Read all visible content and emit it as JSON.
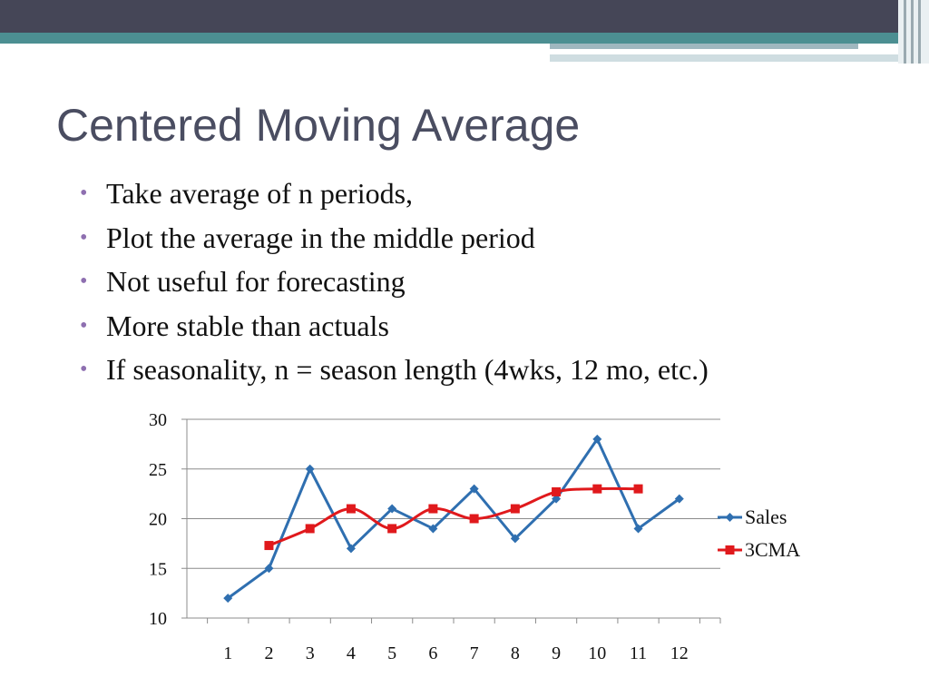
{
  "theme": {
    "band_dark": "#454657",
    "band_teal": "#4c8f92",
    "title_color": "#4a4d61",
    "bullet_color": "#8e6fb0",
    "sales_color": "#2f6fb0",
    "cma_color": "#e0191c"
  },
  "slide": {
    "title": "Centered Moving Average",
    "bullets": [
      "Take average of n periods,",
      "Plot the average in the middle period",
      "Not useful for forecasting",
      "More stable than actuals",
      "If seasonality, n = season length (4wks, 12 mo, etc.)"
    ]
  },
  "chart_data": {
    "type": "line",
    "x": [
      1,
      2,
      3,
      4,
      5,
      6,
      7,
      8,
      9,
      10,
      11,
      12
    ],
    "series": [
      {
        "name": "Sales",
        "marker": "diamond",
        "values": [
          12,
          15,
          25,
          17,
          21,
          19,
          23,
          18,
          22,
          28,
          19,
          22
        ]
      },
      {
        "name": "3CMA",
        "marker": "square",
        "values": [
          null,
          17.3,
          19,
          21,
          19,
          21,
          20,
          21,
          22.7,
          23,
          23,
          null
        ]
      }
    ],
    "ylim": [
      10,
      30
    ],
    "yticks": [
      10,
      15,
      20,
      25,
      30
    ],
    "grid": true,
    "legend": "right"
  }
}
